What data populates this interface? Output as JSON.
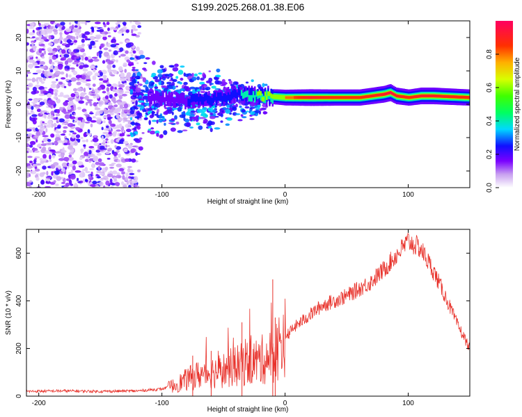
{
  "title": "S199.2025.268.01.38.E06",
  "chart_data": [
    {
      "type": "heatmap",
      "title": "S199.2025.268.01.38.E06",
      "xlabel": "Height of straight line (km)",
      "ylabel": "Frequency (Hz)",
      "xlim": [
        -210,
        150
      ],
      "ylim": [
        -25,
        25
      ],
      "xticks": [
        -200,
        -100,
        0,
        100
      ],
      "yticks": [
        -20,
        -10,
        0,
        10,
        20
      ],
      "colorbar": {
        "label": "Normalized spectral amplitude",
        "range": [
          0.0,
          1.0
        ],
        "ticks": [
          0.0,
          0.2,
          0.4,
          0.6,
          0.8
        ],
        "tick_labels": [
          "0.0",
          "0.2",
          "0.4",
          "0.6",
          "0.8"
        ]
      },
      "ridge": {
        "description_x": [
          -120,
          -100,
          -80,
          -60,
          -40,
          -20,
          0,
          20,
          40,
          60,
          80,
          85,
          90,
          100,
          110,
          120,
          150
        ],
        "frequency_hz": [
          2,
          1.5,
          1,
          1.5,
          3,
          2.5,
          2,
          2,
          2,
          2,
          3,
          3.5,
          2.5,
          2,
          2.5,
          2.5,
          2
        ],
        "amplitude": [
          0.1,
          0.15,
          0.2,
          0.3,
          0.3,
          0.6,
          0.75,
          0.85,
          0.8,
          0.8,
          0.85,
          0.9,
          0.85,
          0.8,
          0.85,
          0.85,
          0.8
        ]
      }
    },
    {
      "type": "line",
      "title": "",
      "xlabel": "Height of straight line (km)",
      "ylabel": "SNR (10 * v/v)",
      "xlim": [
        -210,
        150
      ],
      "ylim": [
        0,
        700
      ],
      "xticks": [
        -200,
        -100,
        0,
        100
      ],
      "yticks": [
        0,
        200,
        400,
        600
      ],
      "color": "#e8312a",
      "series": [
        {
          "name": "SNR",
          "x": [
            -210,
            -180,
            -150,
            -120,
            -100,
            -90,
            -80,
            -70,
            -60,
            -50,
            -40,
            -30,
            -20,
            -10,
            0,
            10,
            20,
            30,
            40,
            50,
            60,
            70,
            80,
            90,
            100,
            110,
            120,
            130,
            140,
            150
          ],
          "y": [
            20,
            22,
            20,
            22,
            30,
            45,
            70,
            90,
            100,
            110,
            125,
            140,
            150,
            170,
            250,
            300,
            340,
            380,
            400,
            420,
            450,
            480,
            530,
            590,
            650,
            620,
            530,
            420,
            300,
            200
          ]
        }
      ],
      "spikes": [
        {
          "x": -75,
          "y": 170
        },
        {
          "x": -60,
          "y": 190
        },
        {
          "x": -35,
          "y": 310
        },
        {
          "x": -10,
          "y": 490
        },
        {
          "x": -8,
          "y": 330
        }
      ]
    }
  ]
}
